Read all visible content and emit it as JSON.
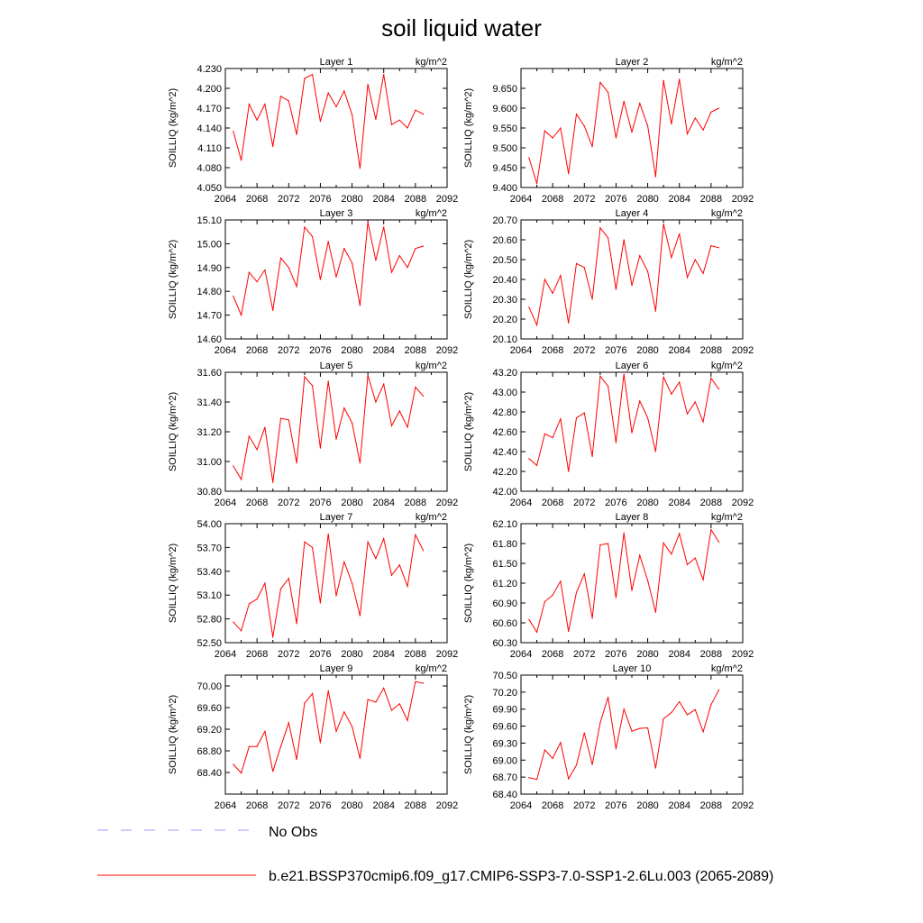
{
  "title": "soil liquid water",
  "colors": {
    "model_line": "#ff0000",
    "obs_line": "#9999ff",
    "axis": "#000000"
  },
  "legend": {
    "obs_label": "No Obs",
    "model_label": "b.e21.BSSP370cmip6.f09_g17.CMIP6-SSP3-7.0-SSP1-2.6Lu.003 (2065-2089)"
  },
  "chart_data": [
    {
      "type": "line",
      "title": "Layer 1",
      "units": "kg/m^2",
      "ylabel": "SOILLIQ  (kg/m^2)",
      "xlim": [
        2064,
        2092
      ],
      "xticks": [
        "2064",
        "2068",
        "2072",
        "2076",
        "2080",
        "2084",
        "2088",
        "2092"
      ],
      "ylim": [
        4.05,
        4.23
      ],
      "yticks": [
        "4.050",
        "4.080",
        "4.110",
        "4.140",
        "4.170",
        "4.200",
        "4.230"
      ],
      "x": [
        2065,
        2066,
        2067,
        2068,
        2069,
        2070,
        2071,
        2072,
        2073,
        2074,
        2075,
        2076,
        2077,
        2078,
        2079,
        2080,
        2081,
        2082,
        2083,
        2084,
        2085,
        2086,
        2087,
        2088,
        2089
      ],
      "y": [
        4.135,
        4.091,
        4.176,
        4.152,
        4.176,
        4.112,
        4.188,
        4.181,
        4.13,
        4.215,
        4.221,
        4.15,
        4.193,
        4.172,
        4.196,
        4.16,
        4.079,
        4.206,
        4.153,
        4.221,
        4.145,
        4.152,
        4.14,
        4.167,
        4.161
      ]
    },
    {
      "type": "line",
      "title": "Layer 2",
      "units": "kg/m^2",
      "ylabel": "SOILLIQ  (kg/m^2)",
      "xlim": [
        2064,
        2092
      ],
      "xticks": [
        "2064",
        "2068",
        "2072",
        "2076",
        "2080",
        "2084",
        "2088",
        "2092"
      ],
      "ylim": [
        9.4,
        9.7
      ],
      "yticks": [
        "9.400",
        "9.450",
        "9.500",
        "9.550",
        "9.600",
        "9.650"
      ],
      "x": [
        2065,
        2066,
        2067,
        2068,
        2069,
        2070,
        2071,
        2072,
        2073,
        2074,
        2075,
        2076,
        2077,
        2078,
        2079,
        2080,
        2081,
        2082,
        2083,
        2084,
        2085,
        2086,
        2087,
        2088,
        2089
      ],
      "y": [
        9.475,
        9.41,
        9.543,
        9.525,
        9.55,
        9.435,
        9.585,
        9.555,
        9.503,
        9.665,
        9.64,
        9.525,
        9.617,
        9.54,
        9.612,
        9.555,
        9.427,
        9.67,
        9.56,
        9.673,
        9.535,
        9.575,
        9.545,
        9.59,
        9.6
      ]
    },
    {
      "type": "line",
      "title": "Layer 3",
      "units": "kg/m^2",
      "ylabel": "SOILLIQ  (kg/m^2)",
      "xlim": [
        2064,
        2092
      ],
      "xticks": [
        "2064",
        "2068",
        "2072",
        "2076",
        "2080",
        "2084",
        "2088",
        "2092"
      ],
      "ylim": [
        14.6,
        15.1
      ],
      "yticks": [
        "14.60",
        "14.70",
        "14.80",
        "14.90",
        "15.00",
        "15.10"
      ],
      "x": [
        2065,
        2066,
        2067,
        2068,
        2069,
        2070,
        2071,
        2072,
        2073,
        2074,
        2075,
        2076,
        2077,
        2078,
        2079,
        2080,
        2081,
        2082,
        2083,
        2084,
        2085,
        2086,
        2087,
        2088,
        2089
      ],
      "y": [
        14.78,
        14.7,
        14.88,
        14.84,
        14.89,
        14.72,
        14.94,
        14.9,
        14.82,
        15.07,
        15.03,
        14.85,
        15.01,
        14.86,
        14.98,
        14.92,
        14.74,
        15.09,
        14.93,
        15.07,
        14.88,
        14.95,
        14.9,
        14.98,
        14.99
      ]
    },
    {
      "type": "line",
      "title": "Layer 4",
      "units": "kg/m^2",
      "ylabel": "SOILLIQ  (kg/m^2)",
      "xlim": [
        2064,
        2092
      ],
      "xticks": [
        "2064",
        "2068",
        "2072",
        "2076",
        "2080",
        "2084",
        "2088",
        "2092"
      ],
      "ylim": [
        20.1,
        20.7
      ],
      "yticks": [
        "20.10",
        "20.20",
        "20.30",
        "20.40",
        "20.50",
        "20.60",
        "20.70"
      ],
      "x": [
        2065,
        2066,
        2067,
        2068,
        2069,
        2070,
        2071,
        2072,
        2073,
        2074,
        2075,
        2076,
        2077,
        2078,
        2079,
        2080,
        2081,
        2082,
        2083,
        2084,
        2085,
        2086,
        2087,
        2088,
        2089
      ],
      "y": [
        20.26,
        20.17,
        20.4,
        20.33,
        20.42,
        20.18,
        20.48,
        20.46,
        20.3,
        20.66,
        20.61,
        20.35,
        20.6,
        20.37,
        20.52,
        20.44,
        20.24,
        20.68,
        20.51,
        20.63,
        20.41,
        20.5,
        20.43,
        20.57,
        20.56
      ]
    },
    {
      "type": "line",
      "title": "Layer 5",
      "units": "kg/m^2",
      "ylabel": "SOILLIQ  (kg/m^2)",
      "xlim": [
        2064,
        2092
      ],
      "xticks": [
        "2064",
        "2068",
        "2072",
        "2076",
        "2080",
        "2084",
        "2088",
        "2092"
      ],
      "ylim": [
        30.8,
        31.6
      ],
      "yticks": [
        "30.80",
        "31.00",
        "31.20",
        "31.40",
        "31.60"
      ],
      "x": [
        2065,
        2066,
        2067,
        2068,
        2069,
        2070,
        2071,
        2072,
        2073,
        2074,
        2075,
        2076,
        2077,
        2078,
        2079,
        2080,
        2081,
        2082,
        2083,
        2084,
        2085,
        2086,
        2087,
        2088,
        2089
      ],
      "y": [
        30.97,
        30.88,
        31.17,
        31.08,
        31.23,
        30.86,
        31.29,
        31.28,
        30.99,
        31.57,
        31.51,
        31.09,
        31.54,
        31.15,
        31.36,
        31.26,
        30.99,
        31.58,
        31.4,
        31.52,
        31.24,
        31.34,
        31.23,
        31.5,
        31.44
      ]
    },
    {
      "type": "line",
      "title": "Layer 6",
      "units": "kg/m^2",
      "ylabel": "SOILLIQ  (kg/m^2)",
      "xlim": [
        2064,
        2092
      ],
      "xticks": [
        "2064",
        "2068",
        "2072",
        "2076",
        "2080",
        "2084",
        "2088",
        "2092"
      ],
      "ylim": [
        42.0,
        43.2
      ],
      "yticks": [
        "42.00",
        "42.20",
        "42.40",
        "42.60",
        "42.80",
        "43.00",
        "43.20"
      ],
      "x": [
        2065,
        2066,
        2067,
        2068,
        2069,
        2070,
        2071,
        2072,
        2073,
        2074,
        2075,
        2076,
        2077,
        2078,
        2079,
        2080,
        2081,
        2082,
        2083,
        2084,
        2085,
        2086,
        2087,
        2088,
        2089
      ],
      "y": [
        42.33,
        42.26,
        42.58,
        42.54,
        42.73,
        42.2,
        42.74,
        42.79,
        42.35,
        43.16,
        43.06,
        42.49,
        43.18,
        42.59,
        42.91,
        42.74,
        42.4,
        43.15,
        42.98,
        43.1,
        42.78,
        42.9,
        42.7,
        43.14,
        43.03
      ]
    },
    {
      "type": "line",
      "title": "Layer 7",
      "units": "kg/m^2",
      "ylabel": "SOILLIQ  (kg/m^2)",
      "xlim": [
        2064,
        2092
      ],
      "xticks": [
        "2064",
        "2068",
        "2072",
        "2076",
        "2080",
        "2084",
        "2088",
        "2092"
      ],
      "ylim": [
        52.5,
        54.0
      ],
      "yticks": [
        "52.50",
        "52.80",
        "53.10",
        "53.40",
        "53.70",
        "54.00"
      ],
      "x": [
        2065,
        2066,
        2067,
        2068,
        2069,
        2070,
        2071,
        2072,
        2073,
        2074,
        2075,
        2076,
        2077,
        2078,
        2079,
        2080,
        2081,
        2082,
        2083,
        2084,
        2085,
        2086,
        2087,
        2088,
        2089
      ],
      "y": [
        52.76,
        52.65,
        52.99,
        53.05,
        53.25,
        52.57,
        53.18,
        53.31,
        52.74,
        53.77,
        53.7,
        53.0,
        53.87,
        53.09,
        53.52,
        53.25,
        52.84,
        53.77,
        53.56,
        53.81,
        53.35,
        53.48,
        53.21,
        53.86,
        53.66
      ]
    },
    {
      "type": "line",
      "title": "Layer 8",
      "units": "kg/m^2",
      "ylabel": "SOILLIQ  (kg/m^2)",
      "xlim": [
        2064,
        2092
      ],
      "xticks": [
        "2064",
        "2068",
        "2072",
        "2076",
        "2080",
        "2084",
        "2088",
        "2092"
      ],
      "ylim": [
        60.3,
        62.1
      ],
      "yticks": [
        "60.30",
        "60.60",
        "60.90",
        "61.20",
        "61.50",
        "61.80",
        "62.10"
      ],
      "x": [
        2065,
        2066,
        2067,
        2068,
        2069,
        2070,
        2071,
        2072,
        2073,
        2074,
        2075,
        2076,
        2077,
        2078,
        2079,
        2080,
        2081,
        2082,
        2083,
        2084,
        2085,
        2086,
        2087,
        2088,
        2089
      ],
      "y": [
        60.65,
        60.46,
        60.92,
        61.02,
        61.23,
        60.47,
        61.06,
        61.34,
        60.67,
        61.78,
        61.8,
        60.98,
        61.96,
        61.09,
        61.62,
        61.24,
        60.76,
        61.81,
        61.64,
        61.95,
        61.48,
        61.58,
        61.25,
        62.01,
        61.82
      ]
    },
    {
      "type": "line",
      "title": "Layer 9",
      "units": "kg/m^2",
      "ylabel": "SOILLIQ  (kg/m^2)",
      "xlim": [
        2064,
        2092
      ],
      "xticks": [
        "2064",
        "2068",
        "2072",
        "2076",
        "2080",
        "2084",
        "2088",
        "2092"
      ],
      "ylim": [
        68.0,
        70.2
      ],
      "yticks": [
        "68.40",
        "68.80",
        "69.20",
        "69.60",
        "70.00"
      ],
      "x": [
        2065,
        2066,
        2067,
        2068,
        2069,
        2070,
        2071,
        2072,
        2073,
        2074,
        2075,
        2076,
        2077,
        2078,
        2079,
        2080,
        2081,
        2082,
        2083,
        2084,
        2085,
        2086,
        2087,
        2088,
        2089
      ],
      "y": [
        68.55,
        68.39,
        68.88,
        68.88,
        69.16,
        68.42,
        68.88,
        69.32,
        68.64,
        69.68,
        69.86,
        68.95,
        69.91,
        69.16,
        69.52,
        69.25,
        68.66,
        69.75,
        69.7,
        69.96,
        69.55,
        69.67,
        69.36,
        70.08,
        70.05
      ]
    },
    {
      "type": "line",
      "title": "Layer 10",
      "units": "kg/m^2",
      "ylabel": "SOILLIQ  (kg/m^2)",
      "xlim": [
        2064,
        2092
      ],
      "xticks": [
        "2064",
        "2068",
        "2072",
        "2076",
        "2080",
        "2084",
        "2088",
        "2092"
      ],
      "ylim": [
        68.4,
        70.5
      ],
      "yticks": [
        "68.40",
        "68.70",
        "69.00",
        "69.30",
        "69.60",
        "69.90",
        "70.20",
        "70.50"
      ],
      "x": [
        2065,
        2066,
        2067,
        2068,
        2069,
        2070,
        2071,
        2072,
        2073,
        2074,
        2075,
        2076,
        2077,
        2078,
        2079,
        2080,
        2081,
        2082,
        2083,
        2084,
        2085,
        2086,
        2087,
        2088,
        2089
      ],
      "y": [
        68.69,
        68.66,
        69.18,
        69.03,
        69.31,
        68.67,
        68.91,
        69.48,
        68.92,
        69.66,
        70.11,
        69.2,
        69.9,
        69.51,
        69.56,
        69.57,
        68.86,
        69.73,
        69.84,
        70.03,
        69.8,
        69.89,
        69.5,
        69.98,
        70.24
      ]
    }
  ]
}
